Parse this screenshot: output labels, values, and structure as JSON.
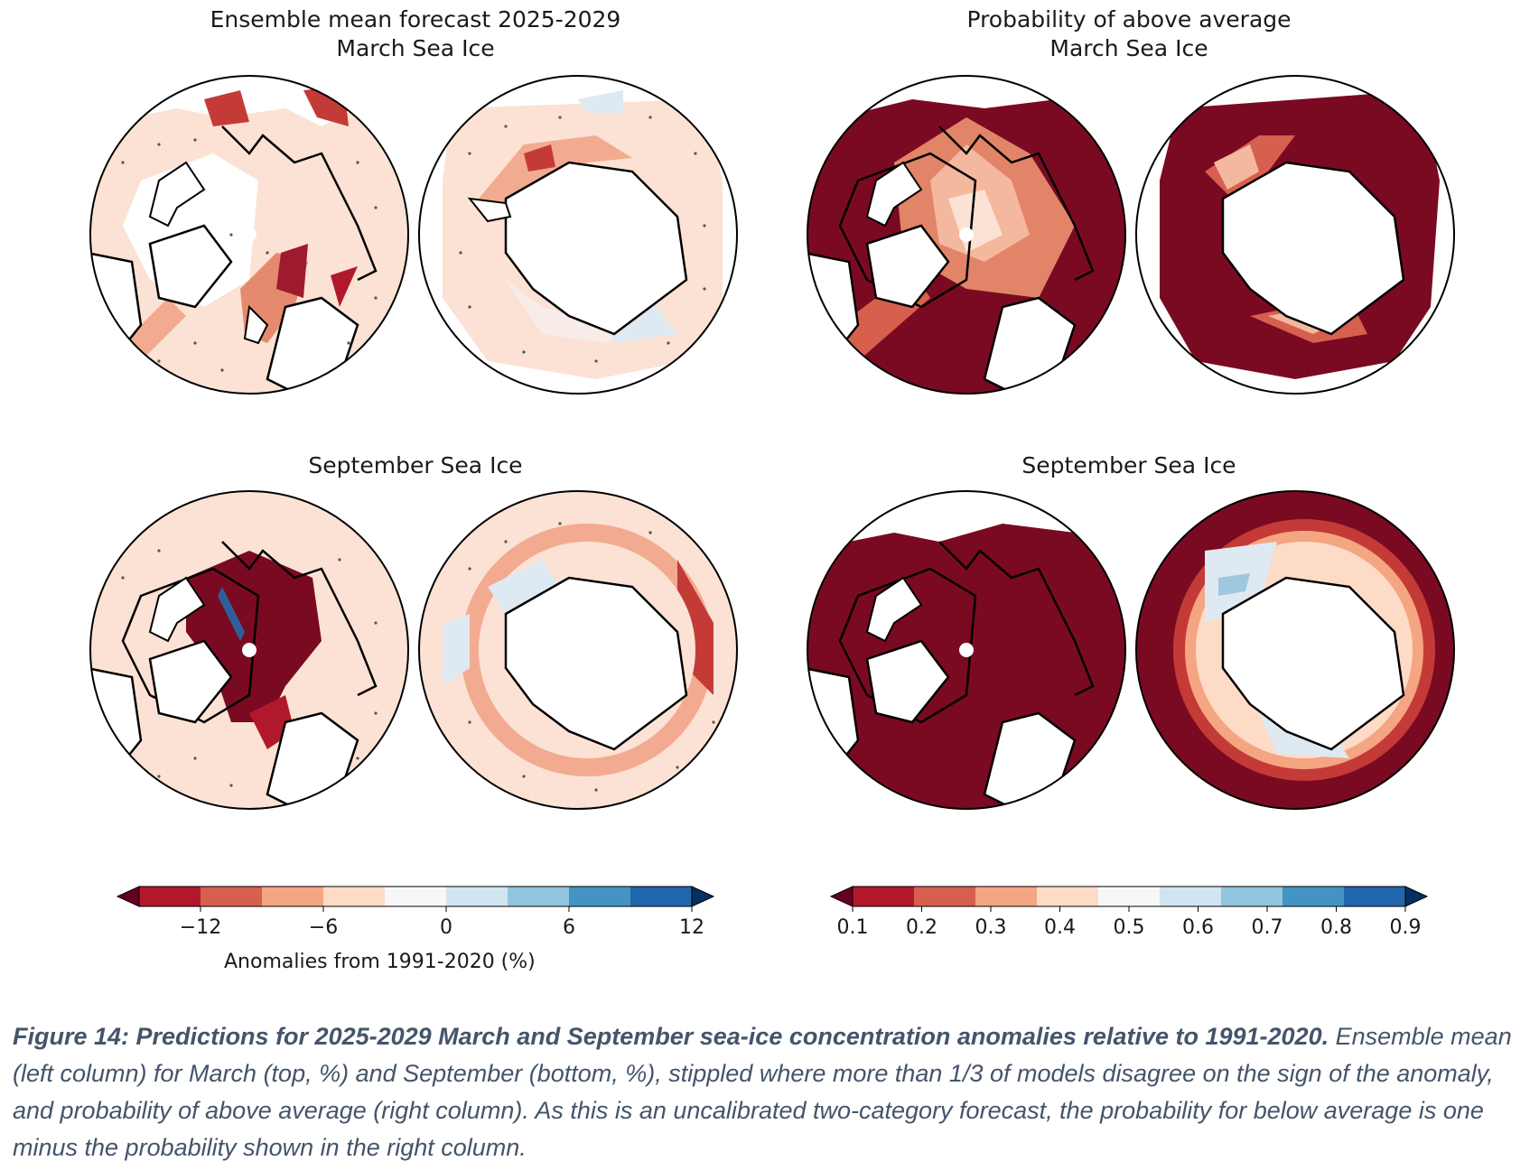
{
  "titles": {
    "top_left_line1": "Ensemble mean forecast 2025-2029",
    "top_left_line2": "March Sea Ice",
    "top_right_line1": "Probability of above average",
    "top_right_line2": "March Sea Ice",
    "bottom_left": "September Sea Ice",
    "bottom_right": "September Sea Ice"
  },
  "colorbar_left": {
    "ticks": [
      "−12",
      "−6",
      "0",
      "6",
      "12"
    ],
    "label": "Anomalies from 1991-2020 (%)",
    "colors": [
      "#67001f",
      "#b2182b",
      "#d6604d",
      "#f4a582",
      "#fddbc7",
      "#f7f7f7",
      "#d1e5f0",
      "#92c5de",
      "#4393c3",
      "#2166ac",
      "#053061"
    ]
  },
  "colorbar_right": {
    "ticks": [
      "0.1",
      "0.2",
      "0.3",
      "0.4",
      "0.5",
      "0.6",
      "0.7",
      "0.8",
      "0.9"
    ],
    "colors": [
      "#67001f",
      "#b2182b",
      "#d6604d",
      "#f4a582",
      "#fddbc7",
      "#f7f7f7",
      "#d1e5f0",
      "#92c5de",
      "#4393c3",
      "#2166ac",
      "#053061"
    ]
  },
  "caption": {
    "bold": "Figure 14: Predictions for 2025-2029 March and September sea-ice concentration anomalies relative to 1991-2020.",
    "text": "Ensemble mean (left column) for March (top, %) and September (bottom, %), stippled where more than 1/3 of models disagree on the sign of the anomaly, and probability of above average (right column). As this is an uncalibrated two-category forecast, the probability for below average is one minus the probability shown in the right column."
  }
}
